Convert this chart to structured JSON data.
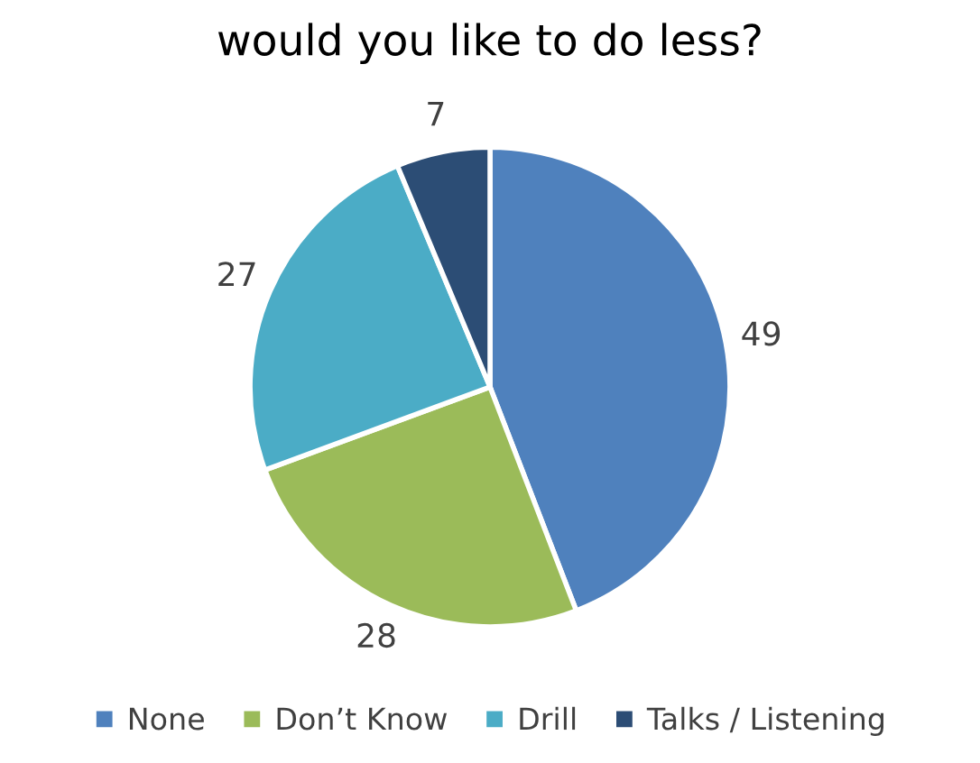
{
  "chart_data": {
    "type": "pie",
    "title": "would you like to do less?",
    "categories": [
      "None",
      "Don’t Know",
      "Drill",
      "Talks / Listening"
    ],
    "values": [
      49,
      28,
      27,
      7
    ],
    "colors": [
      "#4f81bd",
      "#9bbb59",
      "#4bacc6",
      "#2c4d75"
    ],
    "data_labels": true,
    "legend": "bottom"
  }
}
